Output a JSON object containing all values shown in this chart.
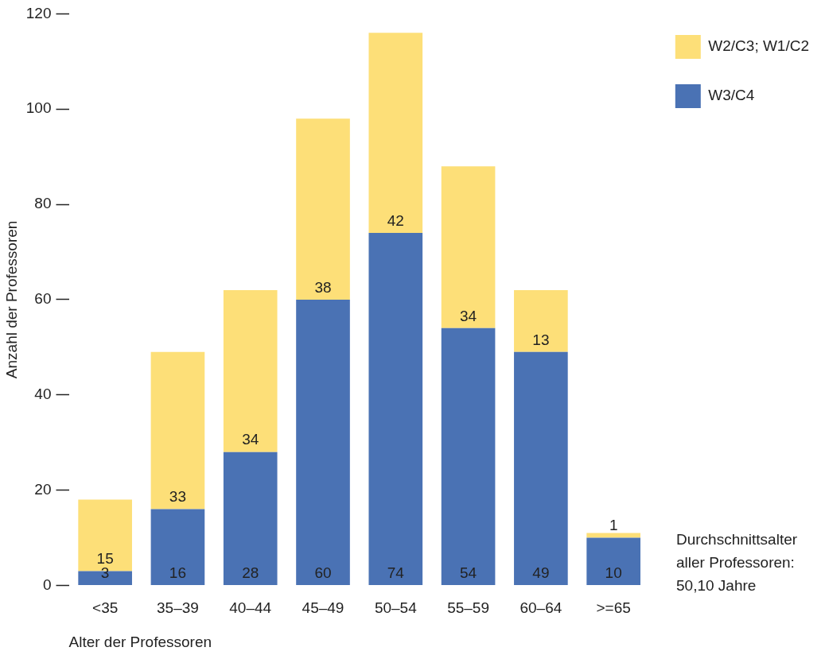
{
  "chart_data": {
    "type": "bar",
    "stacked": true,
    "xlabel": "Alter der Professoren",
    "ylabel": "Anzahl der Professoren",
    "categories": [
      "<35",
      "35–39",
      "40–44",
      "45–49",
      "50–54",
      "55–59",
      "60–64",
      ">=65"
    ],
    "series": [
      {
        "name": "W3/C4",
        "color": "#4a72b4",
        "values": [
          3,
          16,
          28,
          60,
          74,
          54,
          49,
          10
        ]
      },
      {
        "name": "W2/C3; W1/C2",
        "color": "#fddf78",
        "values": [
          15,
          33,
          34,
          38,
          42,
          34,
          13,
          1
        ]
      }
    ],
    "ylim": [
      0,
      120
    ],
    "yticks": [
      0,
      20,
      40,
      60,
      80,
      100,
      120
    ],
    "grid": false,
    "legend": "top right",
    "data_labels": true,
    "annotations": [
      "Durchschnittsalter aller Professoren: 50,10 Jahre"
    ]
  }
}
